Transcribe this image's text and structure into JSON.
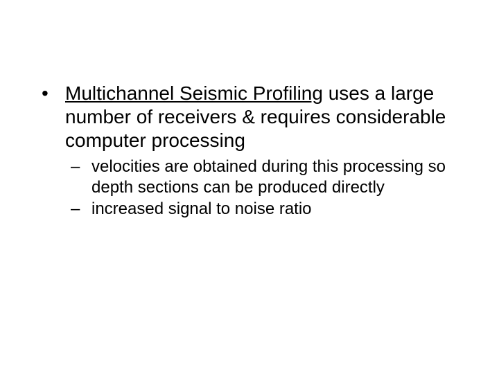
{
  "slide": {
    "background_color": "#ffffff",
    "text_color": "#000000",
    "font_family": "Arial",
    "bullet": {
      "term": "Multichannel Seismic Profiling",
      "rest": " uses a large number of receivers & requires considerable computer processing",
      "term_underlined": true,
      "fontsize_pt": 28
    },
    "subbullets": [
      "velocities are obtained during this processing so depth sections can be produced directly",
      "increased signal to noise ratio"
    ],
    "subbullet_fontsize_pt": 24
  }
}
